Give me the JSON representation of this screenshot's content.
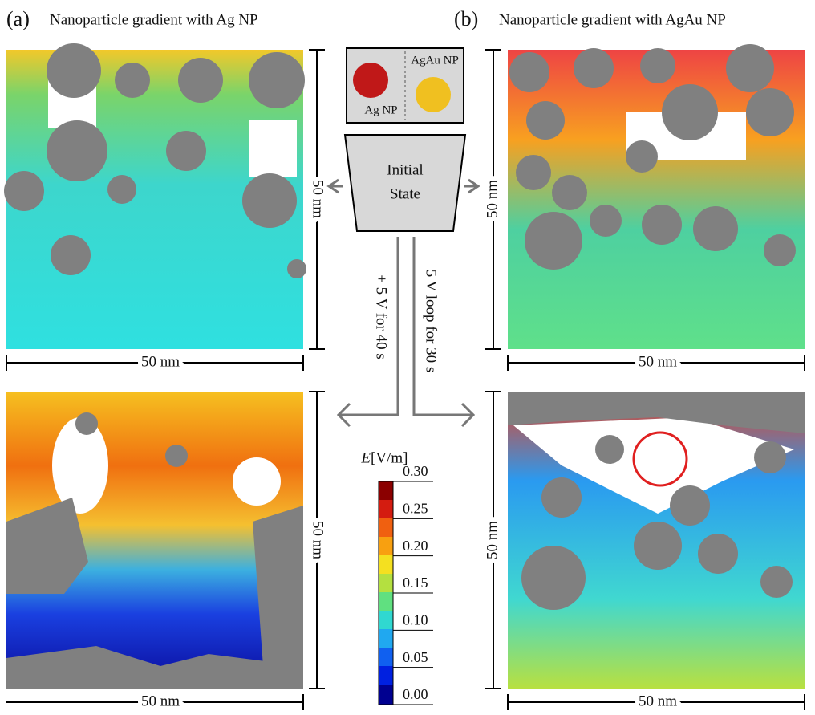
{
  "panel_a": {
    "label": "(a)",
    "title": "Nanoparticle gradient with Ag NP"
  },
  "panel_b": {
    "label": "(b)",
    "title": "Nanoparticle gradient with AgAu NP"
  },
  "scale_bars": [
    "50 nm",
    "50 nm",
    "50 nm",
    "50 nm",
    "50 nm",
    "50 nm",
    "50 nm",
    "50 nm"
  ],
  "legend": {
    "left": "Ag NP",
    "right": "AgAu NP"
  },
  "initial_state": [
    "Initial",
    "State"
  ],
  "arrows": {
    "left": "+ 5 V for 40 s",
    "right": "5 V loop for 30 s"
  },
  "colorbar": {
    "symbol": "E",
    "unit": "[V/m]",
    "lim": [
      0,
      0.3
    ],
    "ticks": [
      {
        "value": 0,
        "label": "0.00"
      },
      {
        "value": 0.05,
        "label": "0.05"
      },
      {
        "value": 0.1,
        "label": "0.10"
      },
      {
        "value": 0.15,
        "label": "0.15"
      },
      {
        "value": 0.2,
        "label": "0.20"
      },
      {
        "value": 0.25,
        "label": "0.25"
      },
      {
        "value": 0.3,
        "label": "0.30"
      }
    ]
  }
}
